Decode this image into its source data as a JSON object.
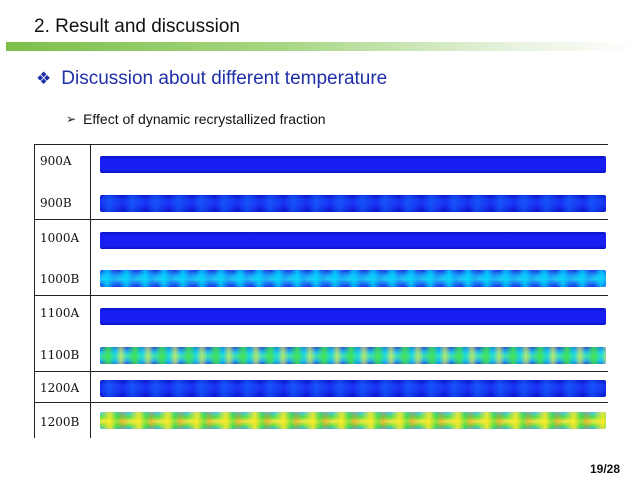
{
  "header": {
    "title": "2. Result and discussion"
  },
  "section": {
    "bullet_icon": "diamond-four-bullet-icon",
    "heading": "Discussion about different temperature"
  },
  "subsection": {
    "bullet_icon": "arrowhead-bullet-icon",
    "text": "Effect of dynamic recrystallized fraction"
  },
  "figure": {
    "rows": [
      {
        "label": "900A",
        "color_pattern": "blue"
      },
      {
        "label": "900B",
        "color_pattern": "blue-mixed"
      },
      {
        "label": "1000A",
        "color_pattern": "blue"
      },
      {
        "label": "1000B",
        "color_pattern": "cyan-mixed"
      },
      {
        "label": "1100A",
        "color_pattern": "blue"
      },
      {
        "label": "1100B",
        "color_pattern": "cyan-green"
      },
      {
        "label": "1200A",
        "color_pattern": "blue-mixed"
      },
      {
        "label": "1200B",
        "color_pattern": "green-yellow"
      }
    ]
  },
  "footer": {
    "page_number": "19/28"
  },
  "colors": {
    "heading_blue": "#1f2fa8",
    "header_bar_green": "#7dbf4a"
  }
}
